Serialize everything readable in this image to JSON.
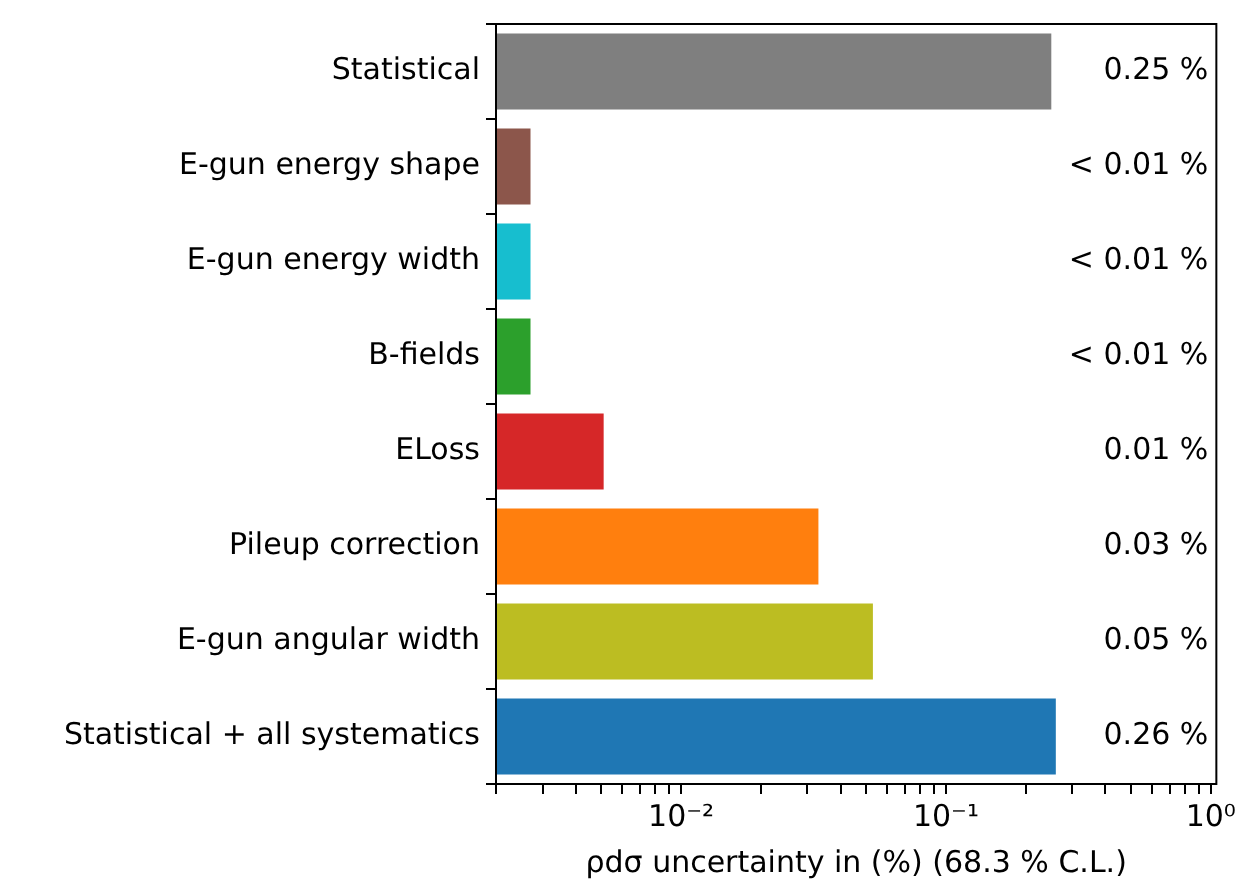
{
  "chart_data": {
    "type": "bar",
    "orientation": "horizontal",
    "log": "x",
    "xlabel": "ρdσ uncertainty in (%) (68.3 % C.L.)",
    "categories": [
      "Statistical",
      "E-gun energy shape",
      "E-gun energy width",
      "B-fields",
      "ELoss",
      "Pileup correction",
      "E-gun angular width",
      "Statistical + all systematics"
    ],
    "values": [
      0.25,
      0.0027,
      0.0027,
      0.0027,
      0.0051,
      0.033,
      0.053,
      0.26
    ],
    "colors": [
      "#7f7f7f",
      "#8c564b",
      "#17becf",
      "#2ca02c",
      "#d62728",
      "#ff7f0e",
      "#bcbd22",
      "#1f77b4"
    ],
    "value_labels": [
      "0.25 %",
      "< 0.01 %",
      "< 0.01 %",
      "< 0.01 %",
      "0.01 %",
      "0.03 %",
      "0.05 %",
      "0.26 %"
    ],
    "xlim": [
      0.002,
      1.05
    ],
    "xticks": [
      {
        "value": 0.002,
        "label": null
      },
      {
        "value": 0.003,
        "label": null
      },
      {
        "value": 0.004,
        "label": null
      },
      {
        "value": 0.005,
        "label": null
      },
      {
        "value": 0.006,
        "label": null
      },
      {
        "value": 0.007,
        "label": null
      },
      {
        "value": 0.008,
        "label": null
      },
      {
        "value": 0.009,
        "label": null
      },
      {
        "value": 0.01,
        "label": "10⁻²"
      },
      {
        "value": 0.02,
        "label": null
      },
      {
        "value": 0.03,
        "label": null
      },
      {
        "value": 0.04,
        "label": null
      },
      {
        "value": 0.05,
        "label": null
      },
      {
        "value": 0.06,
        "label": null
      },
      {
        "value": 0.07,
        "label": null
      },
      {
        "value": 0.08,
        "label": null
      },
      {
        "value": 0.09,
        "label": null
      },
      {
        "value": 0.1,
        "label": "10⁻¹"
      },
      {
        "value": 0.2,
        "label": null
      },
      {
        "value": 0.3,
        "label": null
      },
      {
        "value": 0.4,
        "label": null
      },
      {
        "value": 0.5,
        "label": null
      },
      {
        "value": 0.6,
        "label": null
      },
      {
        "value": 0.7,
        "label": null
      },
      {
        "value": 0.8,
        "label": null
      },
      {
        "value": 0.9,
        "label": null
      },
      {
        "value": 1,
        "label": "10⁰"
      }
    ],
    "grid": false,
    "legend": false
  }
}
